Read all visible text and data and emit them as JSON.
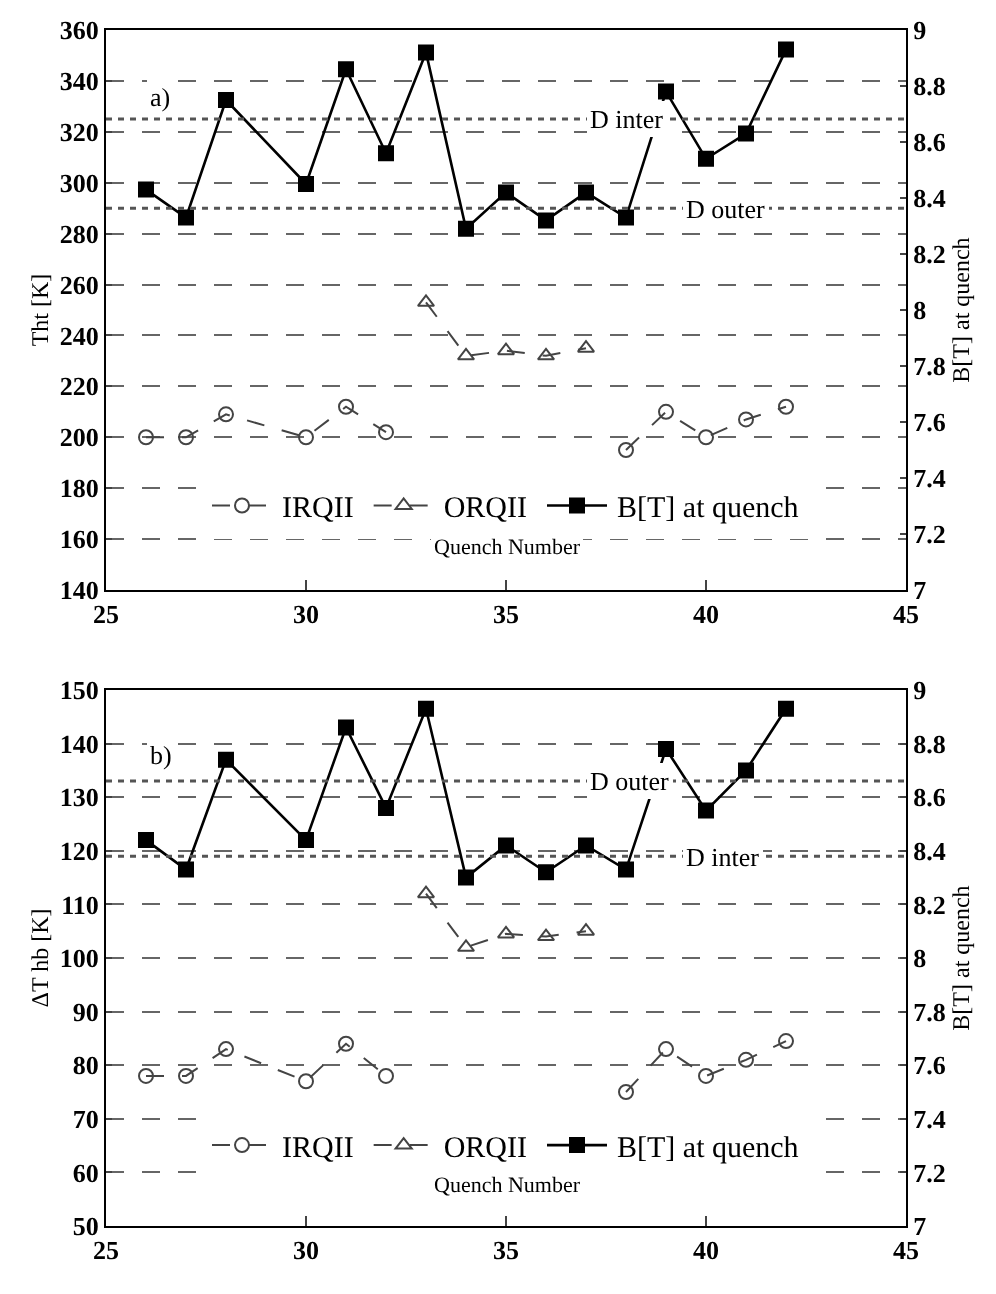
{
  "chart_data": [
    {
      "type": "line",
      "annotations": [
        "a)"
      ],
      "xlabel": "Quench Number",
      "ylabel": "Tht [K]",
      "y2label": "B[T] at quench",
      "xlim": [
        25,
        45
      ],
      "xticks": [
        25,
        30,
        35,
        40,
        45
      ],
      "ylim": [
        140,
        360
      ],
      "yticks": [
        140,
        160,
        180,
        200,
        220,
        240,
        260,
        280,
        300,
        320,
        340,
        360
      ],
      "y2lim": [
        7,
        9
      ],
      "y2ticks": [
        7,
        7.2,
        7.4,
        7.6,
        7.8,
        8,
        8.2,
        8.4,
        8.6,
        8.8,
        9
      ],
      "grid": "y",
      "legend": "bottom",
      "ref_lines": [
        {
          "axis": "y",
          "value": 325,
          "label": "D inter",
          "line_style": "dotted",
          "color": "#555555"
        },
        {
          "axis": "y",
          "value": 290,
          "label": "D outer",
          "line_style": "dotted",
          "color": "#555555"
        }
      ],
      "series": [
        {
          "name": "IRQII",
          "color": "#444444",
          "marker": "circle",
          "line_style": "dashed",
          "x": [
            26,
            27,
            28,
            30,
            31,
            32,
            35,
            38,
            39,
            40,
            41,
            42
          ],
          "values": [
            200,
            200,
            209,
            200,
            212,
            202,
            null,
            195,
            210,
            200,
            207,
            212
          ]
        },
        {
          "name": "ORQII",
          "color": "#444444",
          "marker": "triangle",
          "line_style": "dashed",
          "x": [
            33,
            34,
            35,
            36,
            37
          ],
          "values": [
            253,
            232,
            234,
            232,
            235
          ]
        },
        {
          "name": "B[T] at quench",
          "color": "#000000",
          "marker": "square",
          "line_style": "solid",
          "axis": "y2",
          "x": [
            26,
            27,
            28,
            30,
            31,
            32,
            33,
            34,
            35,
            36,
            37,
            38,
            39,
            40,
            41,
            42
          ],
          "values": [
            8.43,
            8.33,
            8.75,
            8.45,
            8.86,
            8.56,
            8.92,
            8.29,
            8.42,
            8.32,
            8.42,
            8.33,
            8.78,
            8.54,
            8.63,
            8.93
          ]
        }
      ]
    },
    {
      "type": "line",
      "annotations": [
        "b)"
      ],
      "xlabel": "Quench Number",
      "ylabel": "ΔT hb [K]",
      "y2label": "B[T] at quench",
      "xlim": [
        25,
        45
      ],
      "xticks": [
        25,
        30,
        35,
        40,
        45
      ],
      "ylim": [
        50,
        150
      ],
      "yticks": [
        50,
        60,
        70,
        80,
        90,
        100,
        110,
        120,
        130,
        140,
        150
      ],
      "y2lim": [
        7,
        9
      ],
      "y2ticks": [
        7,
        7.2,
        7.4,
        7.6,
        7.8,
        8,
        8.2,
        8.4,
        8.6,
        8.8,
        9
      ],
      "grid": "y",
      "legend": "bottom",
      "ref_lines": [
        {
          "axis": "y",
          "value": 133,
          "label": "D outer",
          "line_style": "dotted",
          "color": "#555555"
        },
        {
          "axis": "y",
          "value": 119,
          "label": "D inter",
          "line_style": "dotted",
          "color": "#555555"
        }
      ],
      "series": [
        {
          "name": "IRQII",
          "color": "#444444",
          "marker": "circle",
          "line_style": "dashed",
          "x": [
            26,
            27,
            28,
            30,
            31,
            32,
            35,
            38,
            39,
            40,
            41,
            42
          ],
          "values": [
            78,
            78,
            83,
            77,
            84,
            78,
            null,
            75,
            83,
            78,
            81,
            84.5
          ]
        },
        {
          "name": "ORQII",
          "color": "#444444",
          "marker": "triangle",
          "line_style": "dashed",
          "x": [
            33,
            34,
            35,
            36,
            37
          ],
          "values": [
            112,
            102,
            104.5,
            104,
            105
          ]
        },
        {
          "name": "B[T] at quench",
          "color": "#000000",
          "marker": "square",
          "line_style": "solid",
          "axis": "y2",
          "x": [
            26,
            27,
            28,
            30,
            31,
            32,
            33,
            34,
            35,
            36,
            37,
            38,
            39,
            40,
            41,
            42
          ],
          "values": [
            8.44,
            8.33,
            8.74,
            8.44,
            8.86,
            8.56,
            8.93,
            8.3,
            8.42,
            8.32,
            8.42,
            8.33,
            8.78,
            8.55,
            8.7,
            8.93
          ]
        }
      ]
    }
  ]
}
